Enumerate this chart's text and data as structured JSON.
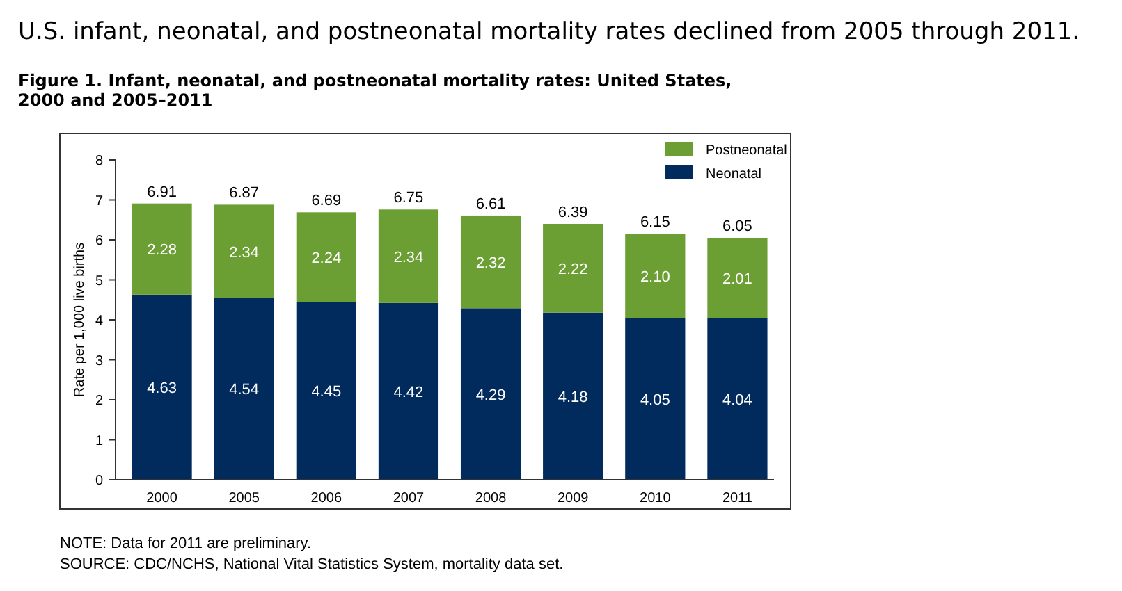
{
  "chart_data": {
    "type": "bar",
    "title": "U.S. infant, neonatal, and postneonatal mortality rates declined from 2005 through 2011.",
    "subtitle": "Figure 1. Infant, neonatal, and postneonatal mortality rates: United States, 2000 and 2005–2011",
    "ylabel": "Rate per 1,000 live births",
    "categories": [
      "2000",
      "2005",
      "2006",
      "2007",
      "2008",
      "2009",
      "2010",
      "2011"
    ],
    "series": [
      {
        "name": "Neonatal",
        "color": "#002b5c",
        "values": [
          4.63,
          4.54,
          4.45,
          4.42,
          4.29,
          4.18,
          4.05,
          4.04
        ],
        "value_labels": [
          "4.63",
          "4.54",
          "4.45",
          "4.42",
          "4.29",
          "4.18",
          "4.05",
          "4.04"
        ]
      },
      {
        "name": "Postneonatal",
        "color": "#6b9e33",
        "values": [
          2.28,
          2.34,
          2.24,
          2.34,
          2.32,
          2.22,
          2.1,
          2.01
        ],
        "value_labels": [
          "2.28",
          "2.34",
          "2.24",
          "2.34",
          "2.32",
          "2.22",
          "2.10",
          "2.01"
        ]
      }
    ],
    "stacked": true,
    "ylim": [
      0,
      8
    ],
    "yticks": [
      0,
      1,
      2,
      3,
      4,
      5,
      6,
      7,
      8
    ],
    "totals": [
      "6.91",
      "6.87",
      "6.69",
      "6.75",
      "6.61",
      "6.39",
      "6.15",
      "6.05"
    ],
    "legend": "top right",
    "grid": false,
    "annotations": [
      "NOTE: Data for 2011 are preliminary.",
      "SOURCE: CDC/NCHS, National Vital Statistics System, mortality data set."
    ]
  }
}
